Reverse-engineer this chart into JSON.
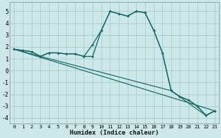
{
  "xlabel": "Humidex (Indice chaleur)",
  "background_color": "#cce8e8",
  "grid_color": "#aacccc",
  "line_color": "#1a6b6b",
  "xlim": [
    -0.5,
    23.5
  ],
  "ylim": [
    -4.5,
    5.8
  ],
  "line1_x": [
    0,
    1,
    2,
    3,
    4,
    5,
    6,
    7,
    8,
    9,
    10,
    11,
    12,
    13,
    14,
    15,
    16,
    17,
    18,
    19,
    20,
    21,
    22,
    23
  ],
  "line1_y": [
    1.8,
    1.7,
    1.6,
    1.2,
    1.5,
    1.5,
    1.4,
    1.4,
    1.2,
    2.2,
    3.4,
    5.0,
    4.8,
    4.6,
    5.0,
    4.9,
    3.4,
    1.5,
    -1.7,
    -2.2,
    -2.5,
    -3.0,
    -3.8,
    -3.4
  ],
  "line2_x": [
    0,
    1,
    2,
    3,
    4,
    5,
    6,
    7,
    8,
    9,
    10,
    11,
    12,
    13,
    14,
    15,
    16,
    17,
    18,
    19,
    20,
    21,
    22,
    23
  ],
  "line2_y": [
    1.8,
    1.7,
    1.6,
    1.2,
    1.5,
    1.5,
    1.4,
    1.4,
    1.2,
    1.2,
    3.4,
    5.0,
    4.8,
    4.6,
    5.0,
    4.9,
    3.4,
    1.5,
    -1.7,
    -2.2,
    -2.5,
    -3.0,
    -3.8,
    -3.4
  ],
  "line3_x": [
    0,
    23
  ],
  "line3_y": [
    1.8,
    -3.4
  ],
  "line4_x": [
    0,
    3,
    18,
    22,
    23
  ],
  "line4_y": [
    1.8,
    1.2,
    -1.7,
    -3.8,
    -3.4
  ],
  "yticks": [
    -4,
    -3,
    -2,
    -1,
    0,
    1,
    2,
    3,
    4,
    5
  ],
  "xticks": [
    0,
    1,
    2,
    3,
    4,
    5,
    6,
    7,
    8,
    9,
    10,
    11,
    12,
    13,
    14,
    15,
    16,
    17,
    18,
    19,
    20,
    21,
    22,
    23
  ]
}
